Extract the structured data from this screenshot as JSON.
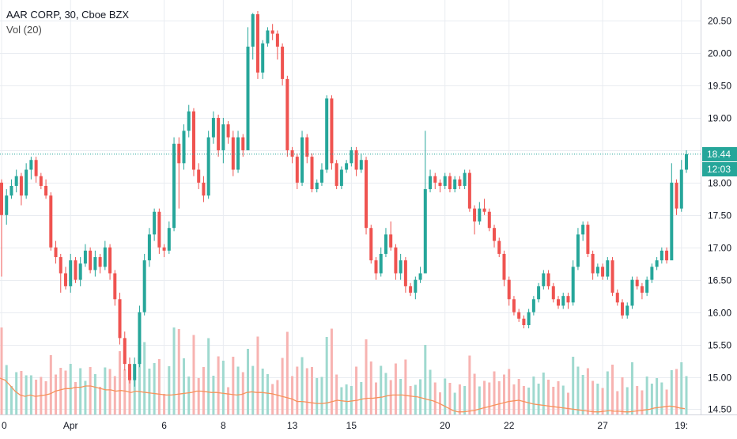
{
  "legend": {
    "symbol_line": "AAR CORP, 30, Cboe BZX",
    "volume_line": "Vol (20)"
  },
  "last_price_label": "18.44",
  "countdown_label": "12:03",
  "colors": {
    "up": "#26a69a",
    "down": "#ef5350",
    "up_vol": "#9fd9cf",
    "down_vol": "#f7b3b1",
    "vol_ma": "#f7925a",
    "grid": "#e9ecf1"
  },
  "chart_data": {
    "type": "candlestick",
    "title": "AAR CORP, 30, Cboe BZX",
    "y_ticks": [
      20.5,
      20.0,
      19.5,
      19.0,
      18.5,
      18.0,
      17.5,
      17.0,
      16.5,
      16.0,
      15.5,
      15.0,
      14.5
    ],
    "ylim": [
      14.42,
      20.82
    ],
    "x_tick_labels": [
      "0",
      "Apr",
      "6",
      "8",
      "13",
      "15",
      "20",
      "22",
      "27",
      "19:"
    ],
    "last_price": 18.44,
    "grid": true,
    "series": [
      {
        "name": "Vol (20)",
        "type": "volume-ma"
      }
    ],
    "candles": [
      [
        18.0,
        17.5,
        18.05,
        16.55
      ],
      [
        17.5,
        17.8,
        17.9,
        17.35
      ],
      [
        17.8,
        17.95,
        18.05,
        17.75
      ],
      [
        17.95,
        18.1,
        18.2,
        17.85
      ],
      [
        18.1,
        17.8,
        18.15,
        17.65
      ],
      [
        17.8,
        18.2,
        18.3,
        17.75
      ],
      [
        18.2,
        18.35,
        18.4,
        18.05
      ],
      [
        18.35,
        18.1,
        18.4,
        18.0
      ],
      [
        18.1,
        17.95,
        18.15,
        17.9
      ],
      [
        17.95,
        17.8,
        18.05,
        17.75
      ],
      [
        17.8,
        17.0,
        17.85,
        16.95
      ],
      [
        17.0,
        16.85,
        17.1,
        16.75
      ],
      [
        16.85,
        16.6,
        16.9,
        16.3
      ],
      [
        16.6,
        16.4,
        16.7,
        16.35
      ],
      [
        16.4,
        16.8,
        16.9,
        16.3
      ],
      [
        16.8,
        16.5,
        16.85,
        16.45
      ],
      [
        16.5,
        16.75,
        16.85,
        16.4
      ],
      [
        16.75,
        16.95,
        17.05,
        16.7
      ],
      [
        16.95,
        16.65,
        17.0,
        16.6
      ],
      [
        16.65,
        16.85,
        16.95,
        16.55
      ],
      [
        16.85,
        16.7,
        16.9,
        16.6
      ],
      [
        16.7,
        17.0,
        17.1,
        16.65
      ],
      [
        17.0,
        16.6,
        17.05,
        16.5
      ],
      [
        16.6,
        16.2,
        16.65,
        16.1
      ],
      [
        16.2,
        15.6,
        16.3,
        15.5
      ],
      [
        15.6,
        15.2,
        15.7,
        15.1
      ],
      [
        15.2,
        14.95,
        15.3,
        14.9
      ],
      [
        14.95,
        15.2,
        15.3,
        14.85
      ],
      [
        15.2,
        16.0,
        16.1,
        15.15
      ],
      [
        16.0,
        16.8,
        16.9,
        15.95
      ],
      [
        16.8,
        17.2,
        17.3,
        16.7
      ],
      [
        17.2,
        17.55,
        17.6,
        17.1
      ],
      [
        17.55,
        17.0,
        17.6,
        16.9
      ],
      [
        17.0,
        16.95,
        17.05,
        16.85
      ],
      [
        16.95,
        17.3,
        17.4,
        16.9
      ],
      [
        17.3,
        18.6,
        18.7,
        17.25
      ],
      [
        18.6,
        18.3,
        18.7,
        17.6
      ],
      [
        18.3,
        18.8,
        18.9,
        18.2
      ],
      [
        18.8,
        19.1,
        19.2,
        18.7
      ],
      [
        19.1,
        18.2,
        19.15,
        18.1
      ],
      [
        18.2,
        18.0,
        18.3,
        17.9
      ],
      [
        18.0,
        17.8,
        18.1,
        17.7
      ],
      [
        17.8,
        18.7,
        18.8,
        17.75
      ],
      [
        18.7,
        19.0,
        19.1,
        18.6
      ],
      [
        19.0,
        18.5,
        19.05,
        18.4
      ],
      [
        18.5,
        18.9,
        19.0,
        18.3
      ],
      [
        18.9,
        18.7,
        18.95,
        18.6
      ],
      [
        18.7,
        18.2,
        18.8,
        18.1
      ],
      [
        18.2,
        18.7,
        18.8,
        18.15
      ],
      [
        18.7,
        18.5,
        18.75,
        18.4
      ],
      [
        18.5,
        20.1,
        20.4,
        19.5
      ],
      [
        20.1,
        20.6,
        20.62,
        19.9
      ],
      [
        20.6,
        19.7,
        20.65,
        19.6
      ],
      [
        19.7,
        20.15,
        20.2,
        19.6
      ],
      [
        20.15,
        20.35,
        20.4,
        20.1
      ],
      [
        20.35,
        20.3,
        20.45,
        20.2
      ],
      [
        20.3,
        20.1,
        20.35,
        19.9
      ],
      [
        20.1,
        19.6,
        20.15,
        19.5
      ],
      [
        19.6,
        18.5,
        19.65,
        18.4
      ],
      [
        18.5,
        18.4,
        18.55,
        18.3
      ],
      [
        18.4,
        18.0,
        18.45,
        17.9
      ],
      [
        18.0,
        18.7,
        18.8,
        17.95
      ],
      [
        18.7,
        18.4,
        18.75,
        18.3
      ],
      [
        18.4,
        17.9,
        18.45,
        17.85
      ],
      [
        17.9,
        18.0,
        18.05,
        17.85
      ],
      [
        18.0,
        18.2,
        18.3,
        17.95
      ],
      [
        18.2,
        19.3,
        19.35,
        18.15
      ],
      [
        19.3,
        18.3,
        19.35,
        18.2
      ],
      [
        18.3,
        17.95,
        18.35,
        17.9
      ],
      [
        17.95,
        18.2,
        18.25,
        17.9
      ],
      [
        18.2,
        18.3,
        18.35,
        18.15
      ],
      [
        18.3,
        18.5,
        18.55,
        18.25
      ],
      [
        18.5,
        18.2,
        18.55,
        18.1
      ],
      [
        18.2,
        18.35,
        18.45,
        18.15
      ],
      [
        18.35,
        17.3,
        18.4,
        17.2
      ],
      [
        17.3,
        16.8,
        17.35,
        16.75
      ],
      [
        16.8,
        16.6,
        16.85,
        16.5
      ],
      [
        16.6,
        16.9,
        17.0,
        16.55
      ],
      [
        16.9,
        17.2,
        17.3,
        16.85
      ],
      [
        17.2,
        17.0,
        17.4,
        16.95
      ],
      [
        17.0,
        16.6,
        17.05,
        16.5
      ],
      [
        16.6,
        16.8,
        16.9,
        16.5
      ],
      [
        16.8,
        16.4,
        16.85,
        16.3
      ],
      [
        16.4,
        16.3,
        16.45,
        16.25
      ],
      [
        16.3,
        16.5,
        16.55,
        16.2
      ],
      [
        16.5,
        16.6,
        16.7,
        16.45
      ],
      [
        16.6,
        17.9,
        18.8,
        17.8
      ],
      [
        17.9,
        18.1,
        18.2,
        17.85
      ],
      [
        18.1,
        18.0,
        18.15,
        17.9
      ],
      [
        18.0,
        17.95,
        18.05,
        17.85
      ],
      [
        17.95,
        18.1,
        18.15,
        17.9
      ],
      [
        18.1,
        17.9,
        18.15,
        17.85
      ],
      [
        17.9,
        18.05,
        18.1,
        17.85
      ],
      [
        18.05,
        17.95,
        18.1,
        17.9
      ],
      [
        17.95,
        18.15,
        18.2,
        17.9
      ],
      [
        18.15,
        17.6,
        18.2,
        17.55
      ],
      [
        17.6,
        17.4,
        17.65,
        17.2
      ],
      [
        17.4,
        17.6,
        17.7,
        17.35
      ],
      [
        17.6,
        17.55,
        17.75,
        17.5
      ],
      [
        17.55,
        17.3,
        17.6,
        17.25
      ],
      [
        17.3,
        17.1,
        17.35,
        17.0
      ],
      [
        17.1,
        16.9,
        17.15,
        16.85
      ],
      [
        16.9,
        16.5,
        16.95,
        16.4
      ],
      [
        16.5,
        16.2,
        16.55,
        16.1
      ],
      [
        16.2,
        16.0,
        16.25,
        15.95
      ],
      [
        16.0,
        15.9,
        16.05,
        15.85
      ],
      [
        15.9,
        15.8,
        15.95,
        15.75
      ],
      [
        15.8,
        16.0,
        16.05,
        15.75
      ],
      [
        16.0,
        16.2,
        16.25,
        15.95
      ],
      [
        16.2,
        16.4,
        16.45,
        16.15
      ],
      [
        16.4,
        16.6,
        16.65,
        16.35
      ],
      [
        16.6,
        16.4,
        16.65,
        16.35
      ],
      [
        16.4,
        16.2,
        16.45,
        16.15
      ],
      [
        16.2,
        16.1,
        16.25,
        16.05
      ],
      [
        16.1,
        16.25,
        16.3,
        16.05
      ],
      [
        16.25,
        16.15,
        16.3,
        16.05
      ],
      [
        16.15,
        16.7,
        16.8,
        16.1
      ],
      [
        16.7,
        17.2,
        17.3,
        16.65
      ],
      [
        17.2,
        17.35,
        17.4,
        17.1
      ],
      [
        17.35,
        16.9,
        17.4,
        16.85
      ],
      [
        16.9,
        16.6,
        16.95,
        16.5
      ],
      [
        16.6,
        16.7,
        16.75,
        16.55
      ],
      [
        16.7,
        16.55,
        16.75,
        16.5
      ],
      [
        16.55,
        16.8,
        16.85,
        16.5
      ],
      [
        16.8,
        16.3,
        16.85,
        16.25
      ],
      [
        16.3,
        16.15,
        16.35,
        16.1
      ],
      [
        16.15,
        15.95,
        16.2,
        15.9
      ],
      [
        15.95,
        16.1,
        16.15,
        15.9
      ],
      [
        16.1,
        16.5,
        16.55,
        16.05
      ],
      [
        16.5,
        16.4,
        16.55,
        16.35
      ],
      [
        16.4,
        16.3,
        16.45,
        16.2
      ],
      [
        16.3,
        16.5,
        16.55,
        16.25
      ],
      [
        16.5,
        16.7,
        16.75,
        16.45
      ],
      [
        16.7,
        16.8,
        16.85,
        16.65
      ],
      [
        16.8,
        16.95,
        17.0,
        16.75
      ],
      [
        16.95,
        16.8,
        17.0,
        16.75
      ],
      [
        16.8,
        18.0,
        18.3,
        17.9
      ],
      [
        18.0,
        17.6,
        18.05,
        17.5
      ],
      [
        17.6,
        18.2,
        18.35,
        17.55
      ],
      [
        18.2,
        18.44,
        18.5,
        18.15
      ]
    ],
    "volume_ma_values": [
      14.98,
      14.95,
      14.87,
      14.78,
      14.72,
      14.7,
      14.72,
      14.7,
      14.71,
      14.72,
      14.74,
      14.78,
      14.8,
      14.82,
      14.82,
      14.84,
      14.84,
      14.86,
      14.86,
      14.84,
      14.82,
      14.8,
      14.8,
      14.78,
      14.79,
      14.78,
      14.76,
      14.78,
      14.77,
      14.76,
      14.75,
      14.74,
      14.73,
      14.72,
      14.72,
      14.73,
      14.74,
      14.75,
      14.76,
      14.78,
      14.78,
      14.77,
      14.76,
      14.76,
      14.75,
      14.74,
      14.73,
      14.72,
      14.73,
      14.76,
      14.77,
      14.76,
      14.76,
      14.75,
      14.74,
      14.72,
      14.7,
      14.68,
      14.66,
      14.62,
      14.62,
      14.61,
      14.6,
      14.59,
      14.59,
      14.6,
      14.62,
      14.64,
      14.63,
      14.62,
      14.63,
      14.64,
      14.66,
      14.67,
      14.67,
      14.68,
      14.69,
      14.71,
      14.72,
      14.72,
      14.72,
      14.71,
      14.7,
      14.69,
      14.67,
      14.65,
      14.63,
      14.6,
      14.56,
      14.52,
      14.48,
      14.46,
      14.46,
      14.47,
      14.48,
      14.5,
      14.52,
      14.54,
      14.56,
      14.58,
      14.6,
      14.62,
      14.63,
      14.64,
      14.62,
      14.6,
      14.58,
      14.57,
      14.56,
      14.55,
      14.54,
      14.53,
      14.52,
      14.51,
      14.5,
      14.49,
      14.48,
      14.47,
      14.46,
      14.46,
      14.47,
      14.48,
      14.47,
      14.47,
      14.46,
      14.46,
      14.47,
      14.48,
      14.49,
      14.5,
      14.52,
      14.53,
      14.54,
      14.55,
      14.54,
      14.52,
      14.51
    ]
  }
}
